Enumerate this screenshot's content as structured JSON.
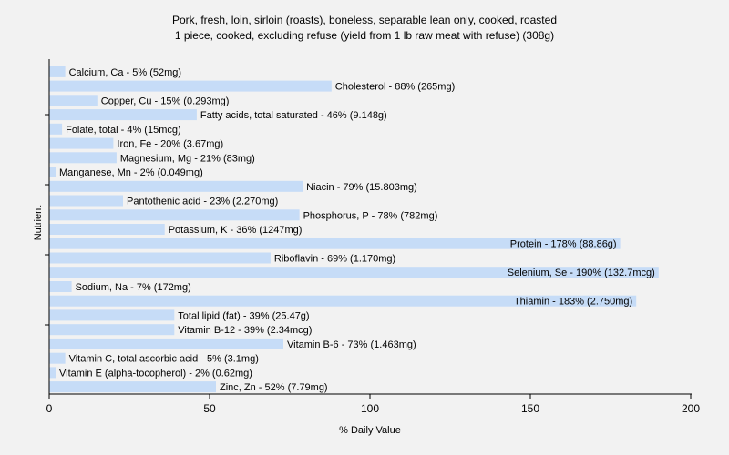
{
  "chart_data": {
    "type": "bar",
    "orientation": "horizontal",
    "title": "Pork, fresh, loin, sirloin (roasts), boneless, separable lean only, cooked, roasted",
    "subtitle": "1 piece, cooked, excluding refuse (yield from 1 lb raw meat with refuse) (308g)",
    "xlabel": "% Daily Value",
    "ylabel": "Nutrient",
    "xlim": [
      0,
      200
    ],
    "xticks": [
      0,
      50,
      100,
      150,
      200
    ],
    "grid": false,
    "bar_color": "#c6dcf7",
    "categories": [
      "Calcium, Ca",
      "Cholesterol",
      "Copper, Cu",
      "Fatty acids, total saturated",
      "Folate, total",
      "Iron, Fe",
      "Magnesium, Mg",
      "Manganese, Mn",
      "Niacin",
      "Pantothenic acid",
      "Phosphorus, P",
      "Potassium, K",
      "Protein",
      "Riboflavin",
      "Selenium, Se",
      "Sodium, Na",
      "Thiamin",
      "Total lipid (fat)",
      "Vitamin B-12",
      "Vitamin B-6",
      "Vitamin C, total ascorbic acid",
      "Vitamin E (alpha-tocopherol)",
      "Zinc, Zn"
    ],
    "values": [
      5,
      88,
      15,
      46,
      4,
      20,
      21,
      2,
      79,
      23,
      78,
      36,
      178,
      69,
      190,
      7,
      183,
      39,
      39,
      73,
      5,
      2,
      52
    ],
    "labels": [
      "Calcium, Ca - 5% (52mg)",
      "Cholesterol - 88% (265mg)",
      "Copper, Cu - 15% (0.293mg)",
      "Fatty acids, total saturated - 46% (9.148g)",
      "Folate, total - 4% (15mcg)",
      "Iron, Fe - 20% (3.67mg)",
      "Magnesium, Mg - 21% (83mg)",
      "Manganese, Mn - 2% (0.049mg)",
      "Niacin - 79% (15.803mg)",
      "Pantothenic acid - 23% (2.270mg)",
      "Phosphorus, P - 78% (782mg)",
      "Potassium, K - 36% (1247mg)",
      "Protein - 178% (88.86g)",
      "Riboflavin - 69% (1.170mg)",
      "Selenium, Se - 190% (132.7mcg)",
      "Sodium, Na - 7% (172mg)",
      "Thiamin - 183% (2.750mg)",
      "Total lipid (fat) - 39% (25.47g)",
      "Vitamin B-12 - 39% (2.34mcg)",
      "Vitamin B-6 - 73% (1.463mg)",
      "Vitamin C, total ascorbic acid - 5% (3.1mg)",
      "Vitamin E (alpha-tocopherol) - 2% (0.62mg)",
      "Zinc, Zn - 52% (7.79mg)"
    ]
  }
}
